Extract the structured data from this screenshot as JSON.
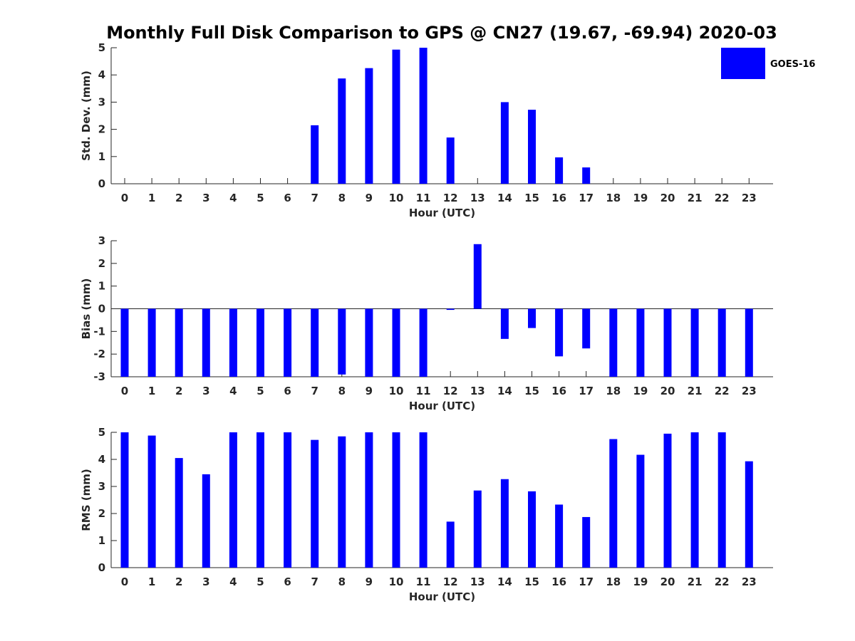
{
  "title": "Monthly Full Disk Comparison to GPS @ CN27 (19.67, -69.94) 2020-03",
  "legend": {
    "label": "GOES-16",
    "color": "#0000ff"
  },
  "chart_data": [
    {
      "type": "bar",
      "name": "std-dev",
      "categories": [
        "0",
        "1",
        "2",
        "3",
        "4",
        "5",
        "6",
        "7",
        "8",
        "9",
        "10",
        "11",
        "12",
        "13",
        "14",
        "15",
        "16",
        "17",
        "18",
        "19",
        "20",
        "21",
        "22",
        "23"
      ],
      "values": [
        null,
        null,
        null,
        null,
        null,
        null,
        null,
        2.15,
        3.87,
        4.25,
        4.93,
        5.0,
        1.7,
        null,
        3.0,
        2.72,
        0.97,
        0.6,
        null,
        null,
        null,
        null,
        null,
        null
      ],
      "xlabel": "Hour (UTC)",
      "ylabel": "Std. Dev. (mm)",
      "ylim": [
        0,
        5
      ],
      "yticks": [
        "0",
        "1",
        "2",
        "3",
        "4",
        "5"
      ],
      "series_name": "GOES-16"
    },
    {
      "type": "bar",
      "name": "bias",
      "categories": [
        "0",
        "1",
        "2",
        "3",
        "4",
        "5",
        "6",
        "7",
        "8",
        "9",
        "10",
        "11",
        "12",
        "13",
        "14",
        "15",
        "16",
        "17",
        "18",
        "19",
        "20",
        "21",
        "22",
        "23"
      ],
      "values": [
        -3,
        -3,
        -3,
        -3,
        -3,
        -3,
        -3,
        -3,
        -2.9,
        -3,
        -3,
        -3,
        -0.05,
        2.85,
        -1.33,
        -0.85,
        -2.1,
        -1.75,
        -3,
        -3,
        -3,
        -3,
        -3,
        -3
      ],
      "xlabel": "Hour (UTC)",
      "ylabel": "Bias (mm)",
      "ylim": [
        -3,
        3
      ],
      "yticks": [
        "-3",
        "-2",
        "-1",
        "0",
        "1",
        "2",
        "3"
      ],
      "series_name": "GOES-16"
    },
    {
      "type": "bar",
      "name": "rms",
      "categories": [
        "0",
        "1",
        "2",
        "3",
        "4",
        "5",
        "6",
        "7",
        "8",
        "9",
        "10",
        "11",
        "12",
        "13",
        "14",
        "15",
        "16",
        "17",
        "18",
        "19",
        "20",
        "21",
        "22",
        "23"
      ],
      "values": [
        5.0,
        4.88,
        4.05,
        3.45,
        5.0,
        5.0,
        5.0,
        4.72,
        4.85,
        5.0,
        5.0,
        5.0,
        1.7,
        2.85,
        3.27,
        2.82,
        2.33,
        1.87,
        4.75,
        4.17,
        4.95,
        5.0,
        5.0,
        3.93
      ],
      "xlabel": "Hour (UTC)",
      "ylabel": "RMS (mm)",
      "ylim": [
        0,
        5
      ],
      "yticks": [
        "0",
        "1",
        "2",
        "3",
        "4",
        "5"
      ],
      "series_name": "GOES-16"
    }
  ]
}
